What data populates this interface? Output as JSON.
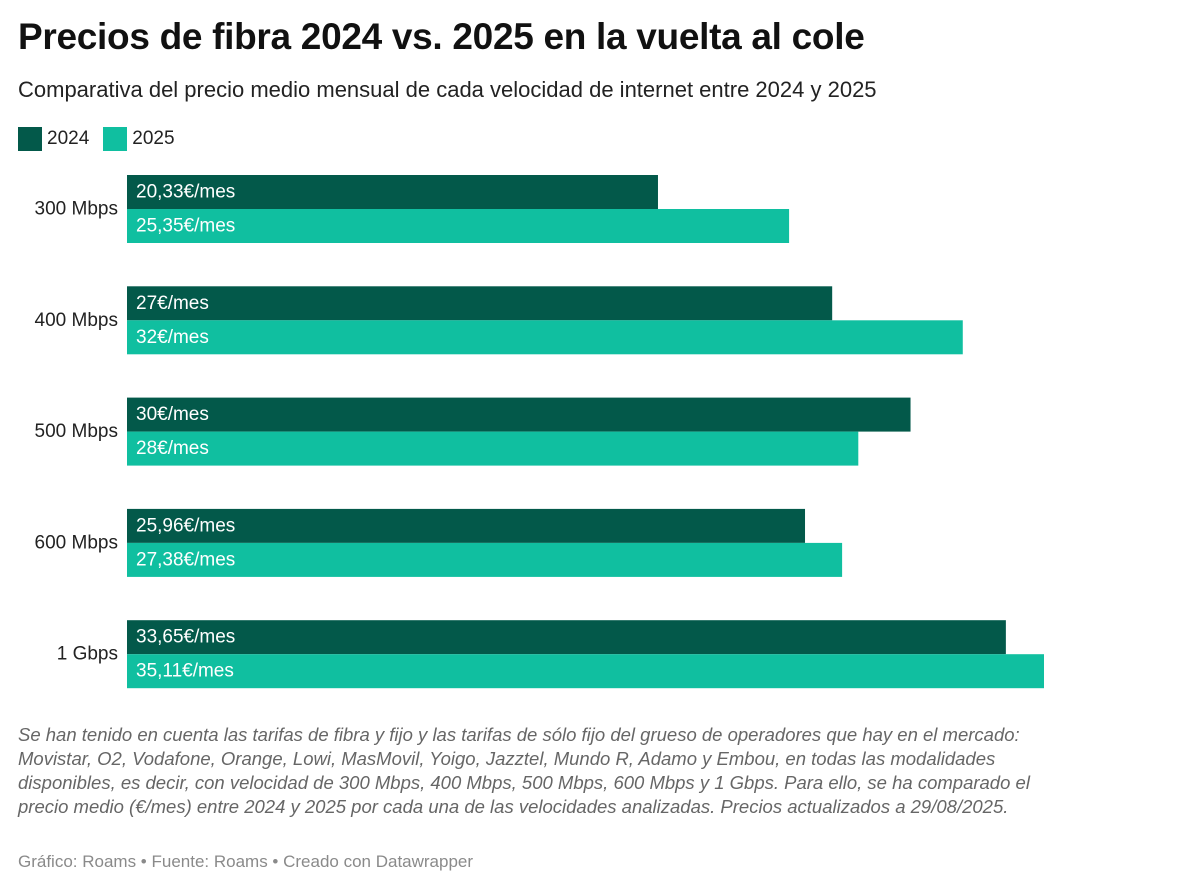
{
  "header": {
    "title": "Precios de fibra 2024 vs. 2025 en la vuelta al cole",
    "subtitle": "Comparativa del precio medio mensual de cada velocidad de internet entre 2024 y 2025"
  },
  "colors": {
    "series_2024": "#03594a",
    "series_2025": "#10bfa0"
  },
  "chart_data": {
    "type": "bar",
    "orientation": "horizontal",
    "categories": [
      "300 Mbps",
      "400 Mbps",
      "500 Mbps",
      "600 Mbps",
      "1 Gbps"
    ],
    "series": [
      {
        "name": "2024",
        "color": "#03594a",
        "values": [
          20.33,
          27,
          30,
          25.96,
          33.65
        ],
        "labels": [
          "20,33€/mes",
          "27€/mes",
          "30€/mes",
          "25,96€/mes",
          "33,65€/mes"
        ]
      },
      {
        "name": "2025",
        "color": "#10bfa0",
        "values": [
          25.35,
          32,
          28,
          27.38,
          35.11
        ],
        "labels": [
          "25,35€/mes",
          "32€/mes",
          "28€/mes",
          "27,38€/mes",
          "35,11€/mes"
        ]
      }
    ],
    "xlim": [
      0,
      35.11
    ],
    "legend_position": "top-left",
    "grid": false
  },
  "footer": {
    "notes": "Se han tenido en cuenta las tarifas de fibra y fijo y las tarifas de sólo fijo del grueso de operadores que hay en el mercado: Movistar, O2, Vodafone, Orange, Lowi, MasMovil, Yoigo, Jazztel, Mundo R, Adamo y Embou, en todas las modalidades disponibles, es decir, con velocidad de 300 Mbps, 400 Mbps, 500 Mbps, 600 Mbps y 1 Gbps. Para ello, se ha comparado el precio medio (€/mes) entre 2024 y 2025 por cada una de las velocidades analizadas. Precios actualizados a 29/08/2025.",
    "credit": "Gráfico: Roams • Fuente: Roams • Creado con Datawrapper"
  }
}
